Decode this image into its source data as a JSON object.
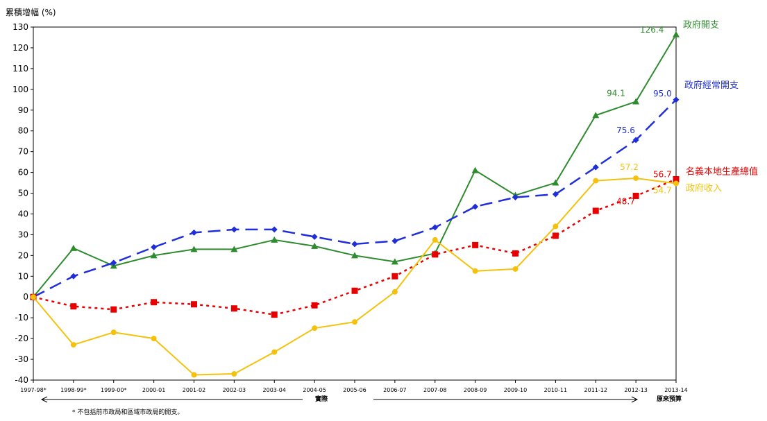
{
  "chart_data": {
    "type": "line",
    "ylabel": "累積增幅 (%)",
    "ylim": [
      -40,
      130
    ],
    "yticks": [
      130,
      120,
      110,
      100,
      90,
      80,
      70,
      60,
      50,
      40,
      30,
      20,
      10,
      0,
      -10,
      -20,
      -30,
      -40
    ],
    "categories": [
      "1997-98*",
      "1998-99*",
      "1999-00*",
      "2000-01",
      "2001-02",
      "2002-03",
      "2003-04",
      "2004-05",
      "2005-06",
      "2006-07",
      "2007-08",
      "2008-09",
      "2009-10",
      "2010-11",
      "2011-12",
      "2012-13",
      "2013-14"
    ],
    "grid": false,
    "series": [
      {
        "name": "政府開支",
        "color": "#2e8b2e",
        "style": "solid",
        "marker": "triangle",
        "values": [
          0,
          23.5,
          15,
          20,
          23,
          23,
          27.5,
          24.5,
          20,
          17,
          21,
          61,
          49,
          55,
          87.5,
          94.1,
          126.4
        ]
      },
      {
        "name": "政府經常開支",
        "color": "#1f2ed8",
        "style": "dashed",
        "marker": "diamond",
        "values": [
          0,
          10,
          16.5,
          24,
          31,
          32.5,
          32.5,
          29,
          25.5,
          27,
          33.5,
          43.5,
          48,
          49.5,
          62.5,
          75.6,
          95.0
        ]
      },
      {
        "name": "名義本地生產總值",
        "color": "#e60000",
        "style": "dotted",
        "marker": "square",
        "values": [
          0,
          -4.5,
          -6,
          -2.5,
          -3.5,
          -5.5,
          -8.5,
          -4,
          3,
          10,
          20.5,
          25,
          21,
          29.5,
          41.5,
          48.7,
          56.7
        ]
      },
      {
        "name": "政府收入",
        "color": "#f4c20d",
        "style": "solid",
        "marker": "circle",
        "values": [
          0,
          -23,
          -17,
          -20,
          -37.5,
          -37,
          -26.5,
          -15,
          -12,
          2.5,
          27.5,
          12.5,
          13.5,
          34,
          56,
          57.2,
          54.7
        ]
      }
    ],
    "data_labels": [
      {
        "series": 0,
        "index": 16,
        "text": "126.4"
      },
      {
        "series": 0,
        "index": 15,
        "text": "94.1"
      },
      {
        "series": 1,
        "index": 16,
        "text": "95.0"
      },
      {
        "series": 1,
        "index": 15,
        "text": "75.6"
      },
      {
        "series": 3,
        "index": 15,
        "text": "57.2"
      },
      {
        "series": 2,
        "index": 16,
        "text": "56.7"
      },
      {
        "series": 3,
        "index": 16,
        "text": "54.7"
      },
      {
        "series": 2,
        "index": 15,
        "text": "48.7"
      }
    ],
    "annotations": {
      "actual": "實際",
      "estimate": "原來預算",
      "footnote": "* 不包括前市政局和區域市政局的開支。"
    }
  }
}
